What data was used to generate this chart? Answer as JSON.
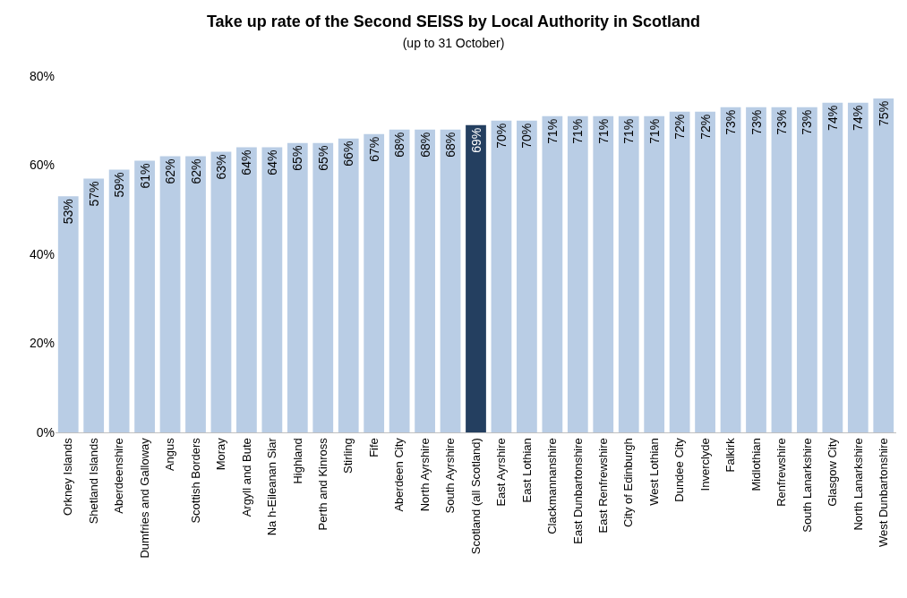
{
  "chart_data": {
    "type": "bar",
    "title": "Take up rate of the Second SEISS by Local Authority in Scotland",
    "subtitle": "(up to 31 October)",
    "categories": [
      "Orkney Islands",
      "Shetland Islands",
      "Aberdeenshire",
      "Dumfries and Galloway",
      "Angus",
      "Scottish Borders",
      "Moray",
      "Argyll and Bute",
      "Na h-Eileanan Siar",
      "Highland",
      "Perth and Kinross",
      "Stirling",
      "Fife",
      "Aberdeen City",
      "North Ayrshire",
      "South Ayrshire",
      "Scotland (all Scotland)",
      "East Ayrshire",
      "East Lothian",
      "Clackmannanshire",
      "East Dunbartonshire",
      "East Renfrewshire",
      "City of Edinburgh",
      "West Lothian",
      "Dundee City",
      "Inverclyde",
      "Falkirk",
      "Midlothian",
      "Renfrewshire",
      "South Lanarkshire",
      "Glasgow City",
      "North Lanarkshire",
      "West Dunbartonshire"
    ],
    "values": [
      53,
      57,
      59,
      61,
      62,
      62,
      63,
      64,
      64,
      65,
      65,
      66,
      67,
      68,
      68,
      68,
      69,
      70,
      70,
      71,
      71,
      71,
      71,
      71,
      72,
      72,
      73,
      73,
      73,
      73,
      74,
      74,
      75
    ],
    "value_labels": [
      "53%",
      "57%",
      "59%",
      "61%",
      "62%",
      "62%",
      "63%",
      "64%",
      "64%",
      "65%",
      "65%",
      "66%",
      "67%",
      "68%",
      "68%",
      "68%",
      "69%",
      "70%",
      "70%",
      "71%",
      "71%",
      "71%",
      "71%",
      "71%",
      "72%",
      "72%",
      "73%",
      "73%",
      "73%",
      "73%",
      "74%",
      "74%",
      "75%"
    ],
    "colors": [
      "#b9cde5",
      "#b9cde5",
      "#b9cde5",
      "#b9cde5",
      "#b9cde5",
      "#b9cde5",
      "#b9cde5",
      "#b9cde5",
      "#b9cde5",
      "#b9cde5",
      "#b9cde5",
      "#b9cde5",
      "#b9cde5",
      "#b9cde5",
      "#b9cde5",
      "#b9cde5",
      "#243f60",
      "#b9cde5",
      "#b9cde5",
      "#b9cde5",
      "#b9cde5",
      "#b9cde5",
      "#b9cde5",
      "#b9cde5",
      "#b9cde5",
      "#b9cde5",
      "#b9cde5",
      "#b9cde5",
      "#b9cde5",
      "#b9cde5",
      "#b9cde5",
      "#b9cde5",
      "#b9cde5"
    ],
    "ylim": [
      0,
      80
    ],
    "yticks": [
      {
        "value": 0,
        "label": "0%"
      },
      {
        "value": 20,
        "label": "20%"
      },
      {
        "value": 40,
        "label": "40%"
      },
      {
        "value": 60,
        "label": "60%"
      },
      {
        "value": 80,
        "label": "80%"
      }
    ]
  }
}
